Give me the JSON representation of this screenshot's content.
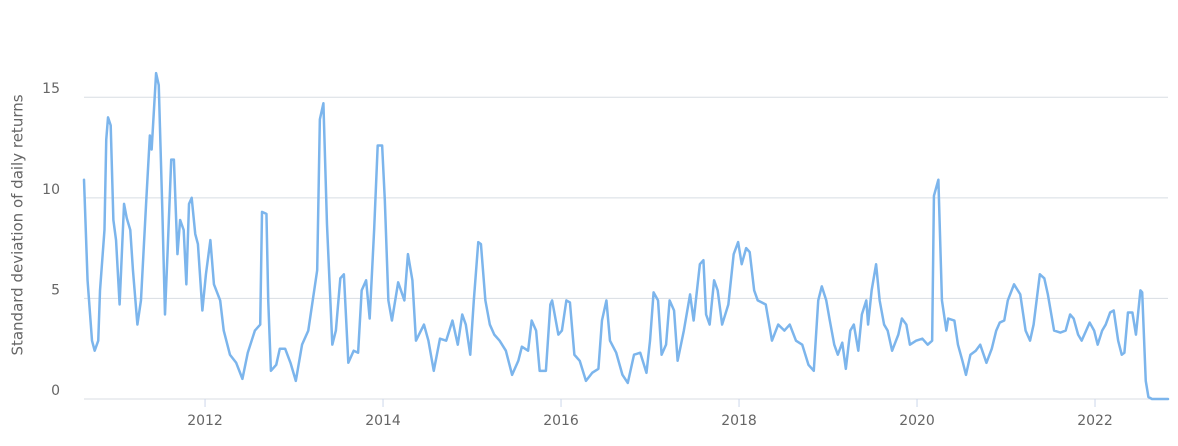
{
  "chart_data": {
    "type": "line",
    "y_label": "Standard deviation of daily returns",
    "color": "#7cb5ec",
    "grid": true,
    "xlim": [
      2010.64,
      2022.82
    ],
    "ylim": [
      0,
      17
    ],
    "xticks": [
      2012,
      2014,
      2016,
      2018,
      2020,
      2022
    ],
    "yticks": [
      0,
      5,
      10,
      15
    ],
    "x": [
      2010.64,
      2010.68,
      2010.73,
      2010.76,
      2010.8,
      2010.82,
      2010.87,
      2010.89,
      2010.91,
      2010.94,
      2010.97,
      2011.0,
      2011.04,
      2011.09,
      2011.12,
      2011.16,
      2011.19,
      2011.24,
      2011.28,
      2011.34,
      2011.38,
      2011.4,
      2011.45,
      2011.48,
      2011.52,
      2011.55,
      2011.58,
      2011.62,
      2011.65,
      2011.69,
      2011.72,
      2011.76,
      2011.79,
      2011.82,
      2011.85,
      2011.89,
      2011.92,
      2011.97,
      2012.01,
      2012.06,
      2012.1,
      2012.17,
      2012.21,
      2012.28,
      2012.35,
      2012.42,
      2012.48,
      2012.56,
      2012.62,
      2012.64,
      2012.69,
      2012.71,
      2012.74,
      2012.8,
      2012.84,
      2012.9,
      2012.96,
      2013.02,
      2013.09,
      2013.16,
      2013.21,
      2013.26,
      2013.29,
      2013.33,
      2013.37,
      2013.43,
      2013.47,
      2013.52,
      2013.56,
      2013.61,
      2013.67,
      2013.72,
      2013.76,
      2013.81,
      2013.85,
      2013.9,
      2013.94,
      2013.99,
      2014.02,
      2014.06,
      2014.1,
      2014.17,
      2014.24,
      2014.28,
      2014.33,
      2014.37,
      2014.46,
      2014.51,
      2014.57,
      2014.64,
      2014.71,
      2014.78,
      2014.84,
      2014.89,
      2014.93,
      2014.98,
      2015.02,
      2015.07,
      2015.1,
      2015.15,
      2015.2,
      2015.25,
      2015.31,
      2015.38,
      2015.45,
      2015.52,
      2015.56,
      2015.63,
      2015.67,
      2015.72,
      2015.76,
      2015.83,
      2015.88,
      2015.9,
      2015.97,
      2016.01,
      2016.06,
      2016.1,
      2016.15,
      2016.21,
      2016.28,
      2016.35,
      2016.42,
      2016.46,
      2016.51,
      2016.55,
      2016.62,
      2016.69,
      2016.75,
      2016.82,
      2016.89,
      2016.96,
      2017.0,
      2017.04,
      2017.09,
      2017.13,
      2017.18,
      2017.22,
      2017.27,
      2017.31,
      2017.38,
      2017.45,
      2017.49,
      2017.56,
      2017.6,
      2017.63,
      2017.67,
      2017.72,
      2017.76,
      2017.81,
      2017.88,
      2017.94,
      2017.99,
      2018.03,
      2018.08,
      2018.12,
      2018.17,
      2018.21,
      2018.3,
      2018.37,
      2018.44,
      2018.51,
      2018.57,
      2018.64,
      2018.71,
      2018.78,
      2018.84,
      2018.89,
      2018.93,
      2018.98,
      2019.02,
      2019.07,
      2019.11,
      2019.16,
      2019.2,
      2019.25,
      2019.29,
      2019.34,
      2019.38,
      2019.43,
      2019.45,
      2019.49,
      2019.54,
      2019.58,
      2019.63,
      2019.67,
      2019.72,
      2019.79,
      2019.83,
      2019.88,
      2019.92,
      2019.99,
      2020.06,
      2020.12,
      2020.17,
      2020.19,
      2020.24,
      2020.28,
      2020.33,
      2020.35,
      2020.42,
      2020.46,
      2020.51,
      2020.55,
      2020.6,
      2020.66,
      2020.71,
      2020.78,
      2020.84,
      2020.89,
      2020.93,
      2020.98,
      2021.02,
      2021.09,
      2021.16,
      2021.22,
      2021.27,
      2021.31,
      2021.38,
      2021.43,
      2021.47,
      2021.54,
      2021.61,
      2021.67,
      2021.72,
      2021.76,
      2021.81,
      2021.85,
      2021.9,
      2021.94,
      2021.99,
      2022.03,
      2022.08,
      2022.12,
      2022.17,
      2022.21,
      2022.26,
      2022.3,
      2022.33,
      2022.37,
      2022.42,
      2022.46,
      2022.51,
      2022.53,
      2022.57,
      2022.6,
      2022.64,
      2022.82
    ],
    "values": [
      10.9,
      5.9,
      2.9,
      2.4,
      2.9,
      5.4,
      8.4,
      12.9,
      14.0,
      13.6,
      8.9,
      7.9,
      4.7,
      9.7,
      9.0,
      8.4,
      6.4,
      3.7,
      4.9,
      9.9,
      13.1,
      12.4,
      16.2,
      15.6,
      9.4,
      4.2,
      7.4,
      11.9,
      11.9,
      7.2,
      8.9,
      8.4,
      5.7,
      9.7,
      10.0,
      8.2,
      7.7,
      4.4,
      6.2,
      7.9,
      5.7,
      4.9,
      3.4,
      2.2,
      1.8,
      1.0,
      2.3,
      3.4,
      3.7,
      9.3,
      9.2,
      4.9,
      1.4,
      1.7,
      2.5,
      2.5,
      1.8,
      0.9,
      2.7,
      3.4,
      4.9,
      6.4,
      13.9,
      14.7,
      8.7,
      2.7,
      3.4,
      6.0,
      6.2,
      1.8,
      2.4,
      2.3,
      5.4,
      5.9,
      4.0,
      8.4,
      12.6,
      12.6,
      9.9,
      4.9,
      3.9,
      5.8,
      4.9,
      7.2,
      5.9,
      2.9,
      3.7,
      2.9,
      1.4,
      3.0,
      2.9,
      3.9,
      2.7,
      4.2,
      3.7,
      2.2,
      4.9,
      7.8,
      7.7,
      4.9,
      3.7,
      3.2,
      2.9,
      2.4,
      1.2,
      1.9,
      2.6,
      2.4,
      3.9,
      3.4,
      1.4,
      1.4,
      4.7,
      4.9,
      3.2,
      3.4,
      4.9,
      4.8,
      2.2,
      1.9,
      0.9,
      1.3,
      1.5,
      3.9,
      4.9,
      2.9,
      2.3,
      1.2,
      0.8,
      2.2,
      2.3,
      1.3,
      2.9,
      5.3,
      4.9,
      2.2,
      2.7,
      4.9,
      4.4,
      1.9,
      3.4,
      5.2,
      3.9,
      6.7,
      6.9,
      4.2,
      3.7,
      5.9,
      5.4,
      3.7,
      4.7,
      7.2,
      7.8,
      6.7,
      7.5,
      7.3,
      5.4,
      4.9,
      4.7,
      2.9,
      3.7,
      3.4,
      3.7,
      2.9,
      2.7,
      1.7,
      1.4,
      4.9,
      5.6,
      4.9,
      3.9,
      2.7,
      2.2,
      2.8,
      1.5,
      3.4,
      3.7,
      2.4,
      4.2,
      4.9,
      3.7,
      5.4,
      6.7,
      4.9,
      3.7,
      3.4,
      2.4,
      3.2,
      4.0,
      3.7,
      2.7,
      2.9,
      3.0,
      2.7,
      2.9,
      10.1,
      10.9,
      4.9,
      3.4,
      4.0,
      3.9,
      2.7,
      1.9,
      1.2,
      2.2,
      2.4,
      2.7,
      1.8,
      2.5,
      3.4,
      3.8,
      3.9,
      4.9,
      5.7,
      5.2,
      3.4,
      2.9,
      3.7,
      6.2,
      6.0,
      5.2,
      3.4,
      3.3,
      3.4,
      4.2,
      4.0,
      3.2,
      2.9,
      3.4,
      3.8,
      3.4,
      2.7,
      3.4,
      3.7,
      4.3,
      4.4,
      2.9,
      2.2,
      2.3,
      4.3,
      4.3,
      3.2,
      5.4,
      5.3,
      0.9,
      0.1,
      0,
      0
    ]
  }
}
